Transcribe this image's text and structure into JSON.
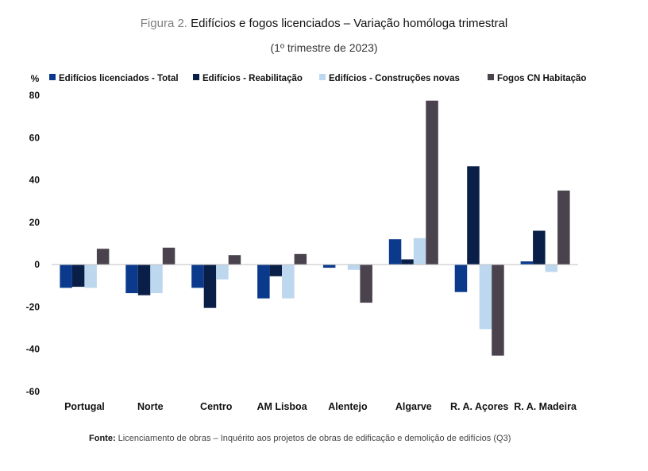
{
  "figure": {
    "label": "Figura 2.",
    "title": "Edifícios e fogos licenciados – Variação homóloga trimestral",
    "subtitle": "(1º trimestre de 2023)",
    "source_label": "Fonte:",
    "source_text": "Licenciamento de obras – Inquérito aos projetos de obras de edificação e demolição de edifícios (Q3)"
  },
  "chart_data": {
    "type": "bar",
    "ylabel": "%",
    "ylim": [
      -60,
      80
    ],
    "yticks": [
      80,
      60,
      40,
      20,
      0,
      -20,
      -40,
      -60
    ],
    "grid": false,
    "legend_position": "top",
    "categories": [
      "Portugal",
      "Norte",
      "Centro",
      "AM Lisboa",
      "Alentejo",
      "Algarve",
      "R. A. Açores",
      "R. A. Madeira"
    ],
    "series": [
      {
        "name": "Edifícios licenciados - Total",
        "color": "#0b3a8c",
        "values": [
          -11,
          -13.5,
          -11,
          -16,
          -1.5,
          12,
          -13,
          1.5
        ]
      },
      {
        "name": "Edifícios - Reabilitação",
        "color": "#0a1f47",
        "values": [
          -10.5,
          -14.5,
          -20.5,
          -5.5,
          0,
          2.5,
          46.5,
          16
        ]
      },
      {
        "name": "Edifícios - Construções novas",
        "color": "#bdd7ee",
        "values": [
          -11,
          -13.5,
          -7,
          -16,
          -2.5,
          12.5,
          -30.5,
          -3.5
        ]
      },
      {
        "name": "Fogos CN Habitação",
        "color": "#4a424c",
        "values": [
          7.5,
          8,
          4.5,
          5,
          -18,
          77.5,
          -43,
          35
        ]
      }
    ]
  }
}
